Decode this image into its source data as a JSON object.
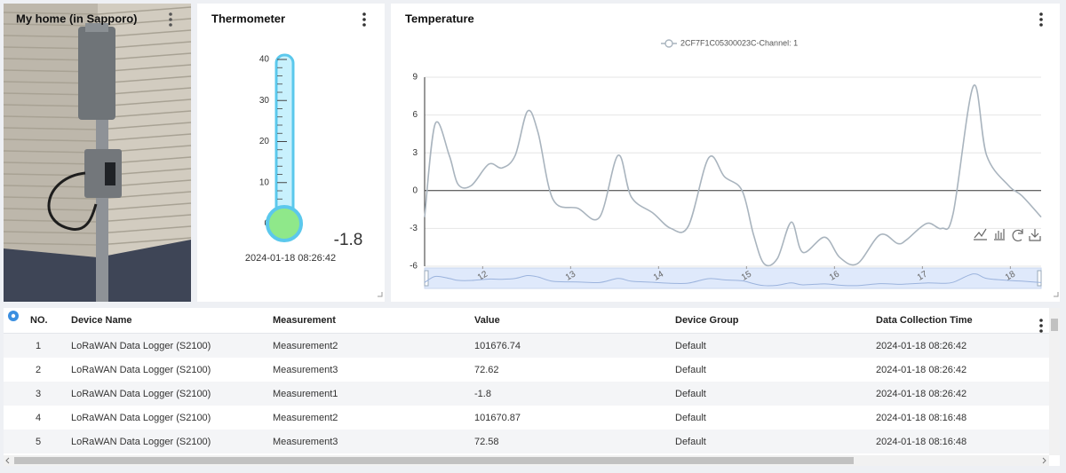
{
  "photo_panel": {
    "title": "My home (in Sapporo)"
  },
  "thermometer": {
    "title": "Thermometer",
    "ylim": [
      0,
      40
    ],
    "yticks": [
      0,
      10,
      20,
      30,
      40
    ],
    "value": -1.8,
    "timestamp": "2024-01-18 08:26:42"
  },
  "chart_data": {
    "type": "line",
    "title": "Temperature",
    "x": [
      11.34,
      11.46,
      11.62,
      11.72,
      11.87,
      12.07,
      12.22,
      12.37,
      12.51,
      12.63,
      12.8,
      13.08,
      13.33,
      13.54,
      13.69,
      13.94,
      14.14,
      14.34,
      14.57,
      14.75,
      14.95,
      15.08,
      15.2,
      15.35,
      15.51,
      15.64,
      15.89,
      16.06,
      16.26,
      16.52,
      16.72,
      16.82,
      17.05,
      17.22,
      17.35,
      17.58,
      17.73,
      17.98,
      18.13,
      18.35
    ],
    "series": [
      {
        "name": "2CF7F1C05300023C-Channel: 1",
        "color": "#a9b4be",
        "values": [
          -2.1,
          5.3,
          2.8,
          0.5,
          0.4,
          2.1,
          1.8,
          2.8,
          6.3,
          4.6,
          -0.7,
          -1.4,
          -2.1,
          2.8,
          -0.5,
          -1.8,
          -3.0,
          -2.8,
          2.6,
          1.1,
          0,
          -3.5,
          -5.8,
          -5.4,
          -2.5,
          -4.9,
          -3.7,
          -5.3,
          -5.8,
          -3.5,
          -4.2,
          -3.9,
          -2.6,
          -3.0,
          -1.8,
          8.3,
          2.8,
          0.4,
          -0.4,
          -2.1
        ]
      }
    ],
    "xlim": [
      11.34,
      18.35
    ],
    "xticks": [
      12,
      13,
      14,
      15,
      16,
      17,
      18
    ],
    "ylim": [
      -6,
      9
    ],
    "yticks": [
      -6,
      -3,
      0,
      3,
      6,
      9
    ],
    "grid": true
  },
  "table": {
    "headers": [
      "NO.",
      "Device Name",
      "Measurement",
      "Value",
      "Device Group",
      "Data Collection Time"
    ],
    "rows": [
      [
        1,
        "LoRaWAN Data Logger (S2100)",
        "Measurement2",
        101676.74,
        "Default",
        "2024-01-18 08:26:42"
      ],
      [
        2,
        "LoRaWAN Data Logger (S2100)",
        "Measurement3",
        72.62,
        "Default",
        "2024-01-18 08:26:42"
      ],
      [
        3,
        "LoRaWAN Data Logger (S2100)",
        "Measurement1",
        -1.8,
        "Default",
        "2024-01-18 08:26:42"
      ],
      [
        4,
        "LoRaWAN Data Logger (S2100)",
        "Measurement2",
        101670.87,
        "Default",
        "2024-01-18 08:16:48"
      ],
      [
        5,
        "LoRaWAN Data Logger (S2100)",
        "Measurement3",
        72.58,
        "Default",
        "2024-01-18 08:16:48"
      ]
    ]
  }
}
